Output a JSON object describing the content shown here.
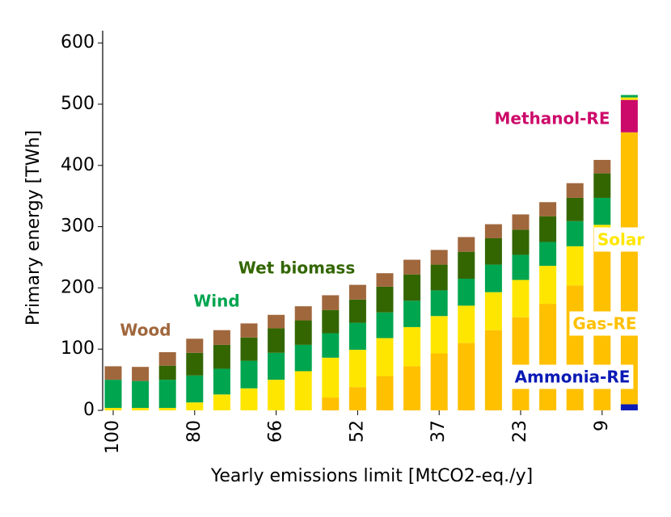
{
  "chart_data": {
    "type": "bar",
    "stacked": true,
    "xlabel": "Yearly emissions limit [MtCO2-eq./y]",
    "ylabel": "Primary energy [TWh]",
    "categories": [
      "100",
      null,
      null,
      "80",
      null,
      null,
      "66",
      null,
      null,
      "52",
      null,
      null,
      "37",
      null,
      null,
      "23",
      null,
      null,
      "9",
      null
    ],
    "ylim": [
      0,
      620
    ],
    "yticks": [
      0,
      100,
      200,
      300,
      400,
      500,
      600
    ],
    "series": [
      {
        "name": "Ammonia-RE",
        "color": "#0a1ab5",
        "values": [
          0,
          0,
          0,
          0,
          0,
          0,
          0,
          0,
          0,
          0,
          0,
          0,
          0,
          0,
          0,
          0,
          0,
          0,
          0,
          10
        ]
      },
      {
        "name": "Gas-RE",
        "color": "#ffc000",
        "values": [
          0,
          0,
          0,
          0,
          0,
          0,
          0,
          0,
          21,
          38,
          56,
          72,
          93,
          110,
          131,
          152,
          174,
          204,
          298,
          444
        ]
      },
      {
        "name": "Methanol-RE",
        "color": "#cc0a6a",
        "values": [
          0,
          0,
          0,
          0,
          0,
          0,
          0,
          0,
          0,
          0,
          0,
          0,
          0,
          0,
          0,
          0,
          0,
          0,
          0,
          53
        ]
      },
      {
        "name": "Solar",
        "color": "#ffe600",
        "values": [
          4,
          4,
          4,
          13,
          26,
          36,
          50,
          64,
          65,
          61,
          62,
          64,
          61,
          61,
          62,
          61,
          62,
          64,
          5,
          4
        ]
      },
      {
        "name": "Wind",
        "color": "#00a550",
        "values": [
          46,
          44,
          46,
          44,
          42,
          45,
          44,
          43,
          40,
          44,
          42,
          43,
          42,
          44,
          45,
          41,
          39,
          41,
          44,
          4
        ]
      },
      {
        "name": "Wet biomass",
        "color": "#336600",
        "values": [
          0,
          0,
          23,
          37,
          39,
          38,
          40,
          40,
          38,
          38,
          42,
          43,
          42,
          44,
          43,
          41,
          42,
          38,
          40,
          0
        ]
      },
      {
        "name": "Wood",
        "color": "#a0673d",
        "values": [
          22,
          23,
          22,
          23,
          24,
          23,
          22,
          23,
          24,
          24,
          22,
          24,
          24,
          24,
          23,
          25,
          23,
          24,
          22,
          0
        ]
      }
    ]
  }
}
